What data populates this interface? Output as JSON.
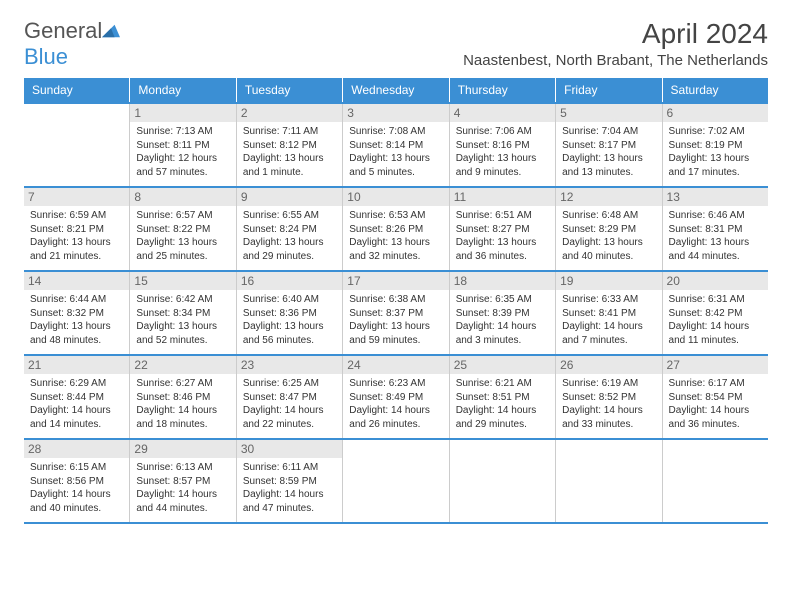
{
  "logo": {
    "text1": "General",
    "text2": "Blue"
  },
  "title": "April 2024",
  "location": "Naastenbest, North Brabant, The Netherlands",
  "daynames": [
    "Sunday",
    "Monday",
    "Tuesday",
    "Wednesday",
    "Thursday",
    "Friday",
    "Saturday"
  ],
  "colors": {
    "accent": "#3b8fd4",
    "headerbg": "#3b8fd4",
    "datebg": "#e8e8e8"
  },
  "weeks": [
    [
      {
        "n": "",
        "empty": true
      },
      {
        "n": "1",
        "sr": "Sunrise: 7:13 AM",
        "ss": "Sunset: 8:11 PM",
        "dl": "Daylight: 12 hours and 57 minutes."
      },
      {
        "n": "2",
        "sr": "Sunrise: 7:11 AM",
        "ss": "Sunset: 8:12 PM",
        "dl": "Daylight: 13 hours and 1 minute."
      },
      {
        "n": "3",
        "sr": "Sunrise: 7:08 AM",
        "ss": "Sunset: 8:14 PM",
        "dl": "Daylight: 13 hours and 5 minutes."
      },
      {
        "n": "4",
        "sr": "Sunrise: 7:06 AM",
        "ss": "Sunset: 8:16 PM",
        "dl": "Daylight: 13 hours and 9 minutes."
      },
      {
        "n": "5",
        "sr": "Sunrise: 7:04 AM",
        "ss": "Sunset: 8:17 PM",
        "dl": "Daylight: 13 hours and 13 minutes."
      },
      {
        "n": "6",
        "sr": "Sunrise: 7:02 AM",
        "ss": "Sunset: 8:19 PM",
        "dl": "Daylight: 13 hours and 17 minutes."
      }
    ],
    [
      {
        "n": "7",
        "sr": "Sunrise: 6:59 AM",
        "ss": "Sunset: 8:21 PM",
        "dl": "Daylight: 13 hours and 21 minutes."
      },
      {
        "n": "8",
        "sr": "Sunrise: 6:57 AM",
        "ss": "Sunset: 8:22 PM",
        "dl": "Daylight: 13 hours and 25 minutes."
      },
      {
        "n": "9",
        "sr": "Sunrise: 6:55 AM",
        "ss": "Sunset: 8:24 PM",
        "dl": "Daylight: 13 hours and 29 minutes."
      },
      {
        "n": "10",
        "sr": "Sunrise: 6:53 AM",
        "ss": "Sunset: 8:26 PM",
        "dl": "Daylight: 13 hours and 32 minutes."
      },
      {
        "n": "11",
        "sr": "Sunrise: 6:51 AM",
        "ss": "Sunset: 8:27 PM",
        "dl": "Daylight: 13 hours and 36 minutes."
      },
      {
        "n": "12",
        "sr": "Sunrise: 6:48 AM",
        "ss": "Sunset: 8:29 PM",
        "dl": "Daylight: 13 hours and 40 minutes."
      },
      {
        "n": "13",
        "sr": "Sunrise: 6:46 AM",
        "ss": "Sunset: 8:31 PM",
        "dl": "Daylight: 13 hours and 44 minutes."
      }
    ],
    [
      {
        "n": "14",
        "sr": "Sunrise: 6:44 AM",
        "ss": "Sunset: 8:32 PM",
        "dl": "Daylight: 13 hours and 48 minutes."
      },
      {
        "n": "15",
        "sr": "Sunrise: 6:42 AM",
        "ss": "Sunset: 8:34 PM",
        "dl": "Daylight: 13 hours and 52 minutes."
      },
      {
        "n": "16",
        "sr": "Sunrise: 6:40 AM",
        "ss": "Sunset: 8:36 PM",
        "dl": "Daylight: 13 hours and 56 minutes."
      },
      {
        "n": "17",
        "sr": "Sunrise: 6:38 AM",
        "ss": "Sunset: 8:37 PM",
        "dl": "Daylight: 13 hours and 59 minutes."
      },
      {
        "n": "18",
        "sr": "Sunrise: 6:35 AM",
        "ss": "Sunset: 8:39 PM",
        "dl": "Daylight: 14 hours and 3 minutes."
      },
      {
        "n": "19",
        "sr": "Sunrise: 6:33 AM",
        "ss": "Sunset: 8:41 PM",
        "dl": "Daylight: 14 hours and 7 minutes."
      },
      {
        "n": "20",
        "sr": "Sunrise: 6:31 AM",
        "ss": "Sunset: 8:42 PM",
        "dl": "Daylight: 14 hours and 11 minutes."
      }
    ],
    [
      {
        "n": "21",
        "sr": "Sunrise: 6:29 AM",
        "ss": "Sunset: 8:44 PM",
        "dl": "Daylight: 14 hours and 14 minutes."
      },
      {
        "n": "22",
        "sr": "Sunrise: 6:27 AM",
        "ss": "Sunset: 8:46 PM",
        "dl": "Daylight: 14 hours and 18 minutes."
      },
      {
        "n": "23",
        "sr": "Sunrise: 6:25 AM",
        "ss": "Sunset: 8:47 PM",
        "dl": "Daylight: 14 hours and 22 minutes."
      },
      {
        "n": "24",
        "sr": "Sunrise: 6:23 AM",
        "ss": "Sunset: 8:49 PM",
        "dl": "Daylight: 14 hours and 26 minutes."
      },
      {
        "n": "25",
        "sr": "Sunrise: 6:21 AM",
        "ss": "Sunset: 8:51 PM",
        "dl": "Daylight: 14 hours and 29 minutes."
      },
      {
        "n": "26",
        "sr": "Sunrise: 6:19 AM",
        "ss": "Sunset: 8:52 PM",
        "dl": "Daylight: 14 hours and 33 minutes."
      },
      {
        "n": "27",
        "sr": "Sunrise: 6:17 AM",
        "ss": "Sunset: 8:54 PM",
        "dl": "Daylight: 14 hours and 36 minutes."
      }
    ],
    [
      {
        "n": "28",
        "sr": "Sunrise: 6:15 AM",
        "ss": "Sunset: 8:56 PM",
        "dl": "Daylight: 14 hours and 40 minutes."
      },
      {
        "n": "29",
        "sr": "Sunrise: 6:13 AM",
        "ss": "Sunset: 8:57 PM",
        "dl": "Daylight: 14 hours and 44 minutes."
      },
      {
        "n": "30",
        "sr": "Sunrise: 6:11 AM",
        "ss": "Sunset: 8:59 PM",
        "dl": "Daylight: 14 hours and 47 minutes."
      },
      {
        "n": "",
        "empty": true
      },
      {
        "n": "",
        "empty": true
      },
      {
        "n": "",
        "empty": true
      },
      {
        "n": "",
        "empty": true
      }
    ]
  ]
}
